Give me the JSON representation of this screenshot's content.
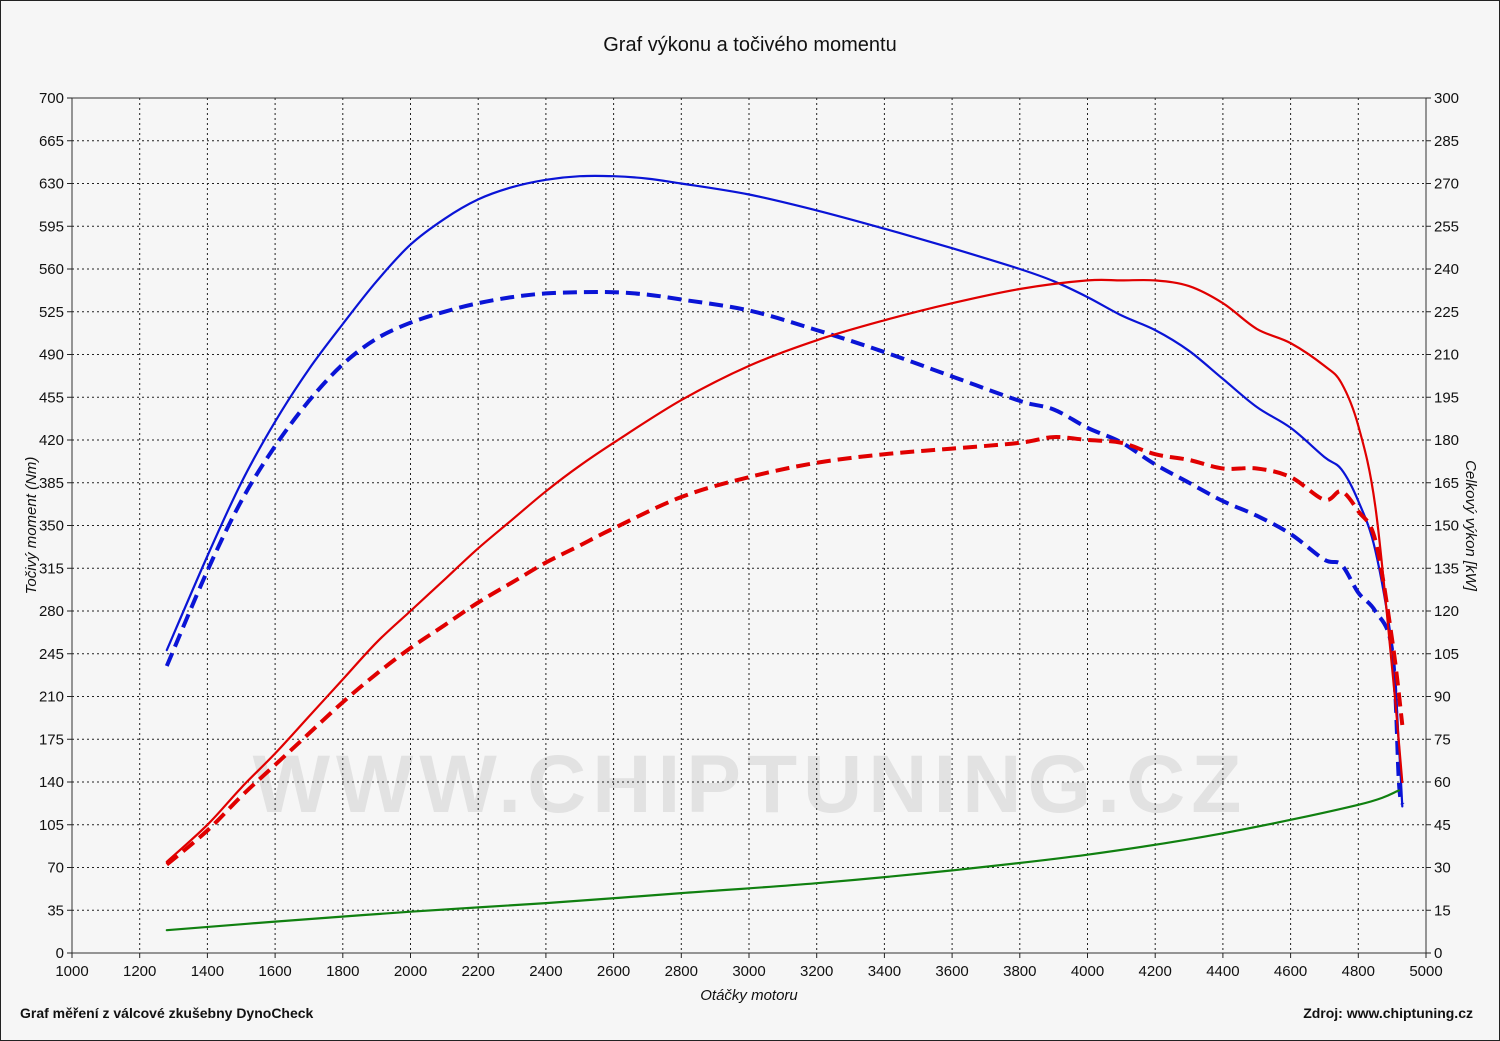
{
  "chart_data": {
    "type": "line",
    "title": "Graf výkonu a točivého momentu",
    "xlabel": "Otáčky motoru",
    "ylabel_left": "Točivý moment (Nm)",
    "ylabel_right": "Celkový výkon [kW]",
    "xlim": [
      1000,
      5000
    ],
    "ylim_left": [
      0,
      700
    ],
    "ylim_right": [
      0,
      300
    ],
    "x_ticks": [
      "1000",
      "1200",
      "1400",
      "1600",
      "1800",
      "2000",
      "2200",
      "2400",
      "2600",
      "2800",
      "3000",
      "3200",
      "3400",
      "3600",
      "3800",
      "4000",
      "4200",
      "4400",
      "4600",
      "4800",
      "5000"
    ],
    "y_left_ticks": [
      "0",
      "35",
      "70",
      "105",
      "140",
      "175",
      "210",
      "245",
      "280",
      "315",
      "350",
      "385",
      "420",
      "455",
      "490",
      "525",
      "560",
      "595",
      "630",
      "665",
      "700"
    ],
    "y_right_ticks": [
      "0",
      "15",
      "30",
      "45",
      "60",
      "75",
      "90",
      "105",
      "120",
      "135",
      "150",
      "165",
      "180",
      "195",
      "210",
      "225",
      "240",
      "255",
      "270",
      "285",
      "300"
    ],
    "grid": true,
    "watermark": "WWW.CHIPTUNING.CZ",
    "series": [
      {
        "color": "#0a14d6",
        "style": "solid",
        "axis": "left",
        "x": [
          1280,
          1400,
          1500,
          1600,
          1700,
          1800,
          1900,
          2000,
          2100,
          2200,
          2300,
          2400,
          2500,
          2600,
          2700,
          2800,
          3000,
          3200,
          3400,
          3600,
          3800,
          3900,
          4000,
          4100,
          4200,
          4300,
          4400,
          4500,
          4600,
          4700,
          4750,
          4800,
          4850,
          4900,
          4920,
          4930
        ],
        "y": [
          248,
          325,
          385,
          435,
          478,
          515,
          550,
          580,
          601,
          617,
          627,
          633,
          636,
          636,
          634,
          630,
          621,
          608,
          593,
          577,
          560,
          550,
          537,
          522,
          510,
          493,
          470,
          447,
          430,
          406,
          396,
          370,
          330,
          250,
          170,
          120
        ]
      },
      {
        "color": "#0a14d6",
        "style": "dashed",
        "axis": "left",
        "x": [
          1280,
          1400,
          1500,
          1600,
          1700,
          1800,
          1900,
          2000,
          2100,
          2200,
          2300,
          2400,
          2500,
          2600,
          2700,
          2800,
          3000,
          3200,
          3400,
          3600,
          3800,
          3900,
          4000,
          4100,
          4200,
          4300,
          4400,
          4500,
          4600,
          4700,
          4750,
          4800,
          4850,
          4900,
          4920,
          4930
        ],
        "y": [
          235,
          313,
          370,
          415,
          452,
          482,
          503,
          516,
          525,
          532,
          537,
          540,
          541,
          541,
          539,
          535,
          526,
          510,
          492,
          472,
          452,
          445,
          430,
          418,
          400,
          385,
          370,
          358,
          343,
          322,
          318,
          295,
          280,
          248,
          140,
          122
        ]
      },
      {
        "color": "#e00000",
        "style": "solid",
        "axis": "right",
        "x": [
          1280,
          1400,
          1500,
          1600,
          1700,
          1800,
          1900,
          2000,
          2100,
          2200,
          2300,
          2400,
          2500,
          2600,
          2800,
          3000,
          3200,
          3400,
          3600,
          3800,
          4000,
          4100,
          4200,
          4300,
          4400,
          4500,
          4600,
          4700,
          4750,
          4800,
          4850,
          4900,
          4930
        ],
        "y": [
          32,
          45,
          58,
          70,
          83,
          96,
          109,
          120,
          131,
          142,
          152,
          162,
          171,
          179,
          194,
          206,
          215,
          222,
          228,
          233,
          236,
          236,
          236,
          234,
          228,
          219,
          214,
          206,
          200,
          185,
          157,
          100,
          60
        ]
      },
      {
        "color": "#e00000",
        "style": "dashed",
        "axis": "right",
        "x": [
          1280,
          1400,
          1500,
          1600,
          1700,
          1800,
          1900,
          2000,
          2100,
          2200,
          2300,
          2400,
          2500,
          2600,
          2800,
          3000,
          3200,
          3400,
          3600,
          3800,
          3900,
          4000,
          4100,
          4200,
          4300,
          4400,
          4500,
          4600,
          4700,
          4750,
          4800,
          4850,
          4900,
          4930
        ],
        "y": [
          31,
          43,
          55,
          66,
          77,
          88,
          98,
          107,
          115,
          123,
          130,
          137,
          143,
          149,
          160,
          167,
          172,
          175,
          177,
          179,
          181,
          180,
          179,
          175,
          173,
          170,
          170,
          167,
          159,
          162,
          155,
          145,
          110,
          80
        ]
      },
      {
        "color": "#108010",
        "style": "solid",
        "axis": "right",
        "x": [
          1280,
          1600,
          2000,
          2400,
          2800,
          3200,
          3600,
          4000,
          4400,
          4800,
          4920
        ],
        "y": [
          8,
          11,
          14.5,
          17.5,
          21,
          24.5,
          29,
          34.5,
          42,
          52,
          57
        ]
      }
    ]
  },
  "footer": {
    "left": "Graf měření z válcové zkušebny DynoCheck",
    "right": "Zdroj: www.chiptuning.cz"
  }
}
